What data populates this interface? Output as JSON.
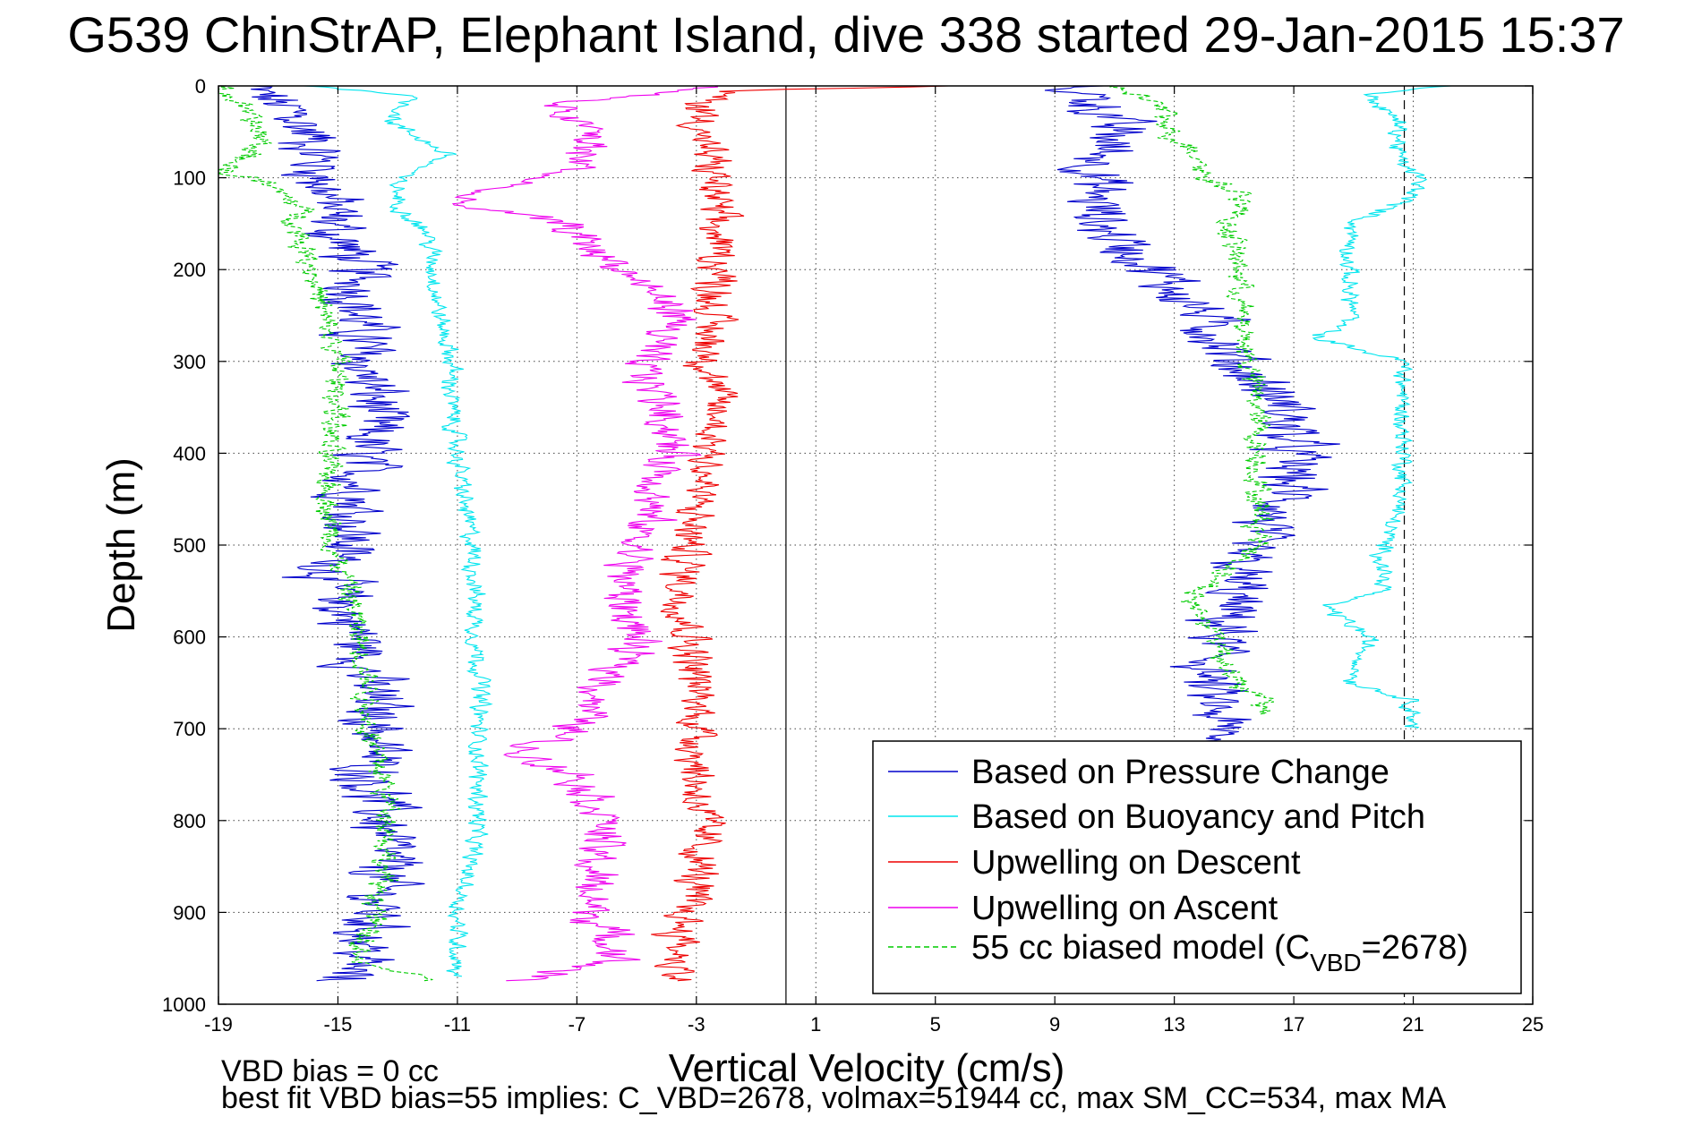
{
  "title": "G539 ChinStrAP, Elephant Island, dive 338 started 29-Jan-2015 15:37",
  "footer": {
    "line1": "VBD bias = 0 cc",
    "line2": "best fit VBD bias=55 implies: C_VBD=2678, volmax=51944 cc, max SM_CC=534, max MA"
  },
  "colors": {
    "pressure_change": "#0000cc",
    "buoyancy_pitch": "#00e5ee",
    "upwelling_descent": "#ee0000",
    "upwelling_ascent": "#ee00ee",
    "biased_model": "#00cc00"
  },
  "chart_data": {
    "type": "line",
    "title": "G539 ChinStrAP, Elephant Island, dive 338 started 29-Jan-2015 15:37",
    "xlabel": "Vertical Velocity (cm/s)",
    "ylabel": "Depth (m)",
    "xlim": [
      -19,
      25
    ],
    "ylim": [
      0,
      1000
    ],
    "y_reversed": true,
    "grid": true,
    "x_ticks": [
      "-19",
      "-15",
      "-11",
      "-7",
      "-3",
      "1",
      "5",
      "9",
      "13",
      "17",
      "21",
      "25"
    ],
    "y_ticks": [
      "0",
      "100",
      "200",
      "300",
      "400",
      "500",
      "600",
      "700",
      "800",
      "900",
      "1000"
    ],
    "reference_lines": {
      "zero_velocity_x": 0,
      "dashed_x": 20.7
    },
    "legend_location": "bottom-right",
    "legend": [
      {
        "label": "Based on Pressure Change",
        "style": "solid",
        "color_key": "pressure_change"
      },
      {
        "label": "Based on Buoyancy and Pitch",
        "style": "solid",
        "color_key": "buoyancy_pitch"
      },
      {
        "label": "Upwelling on Descent",
        "style": "solid",
        "color_key": "upwelling_descent"
      },
      {
        "label": "Upwelling on Ascent",
        "style": "solid",
        "color_key": "upwelling_ascent"
      },
      {
        "label_prefix": "55 cc biased model (C",
        "label_sub": "VBD",
        "label_suffix": "=2678)",
        "style": "dashed",
        "color_key": "biased_model"
      }
    ],
    "series": [
      {
        "name": "Based on Pressure Change",
        "color_key": "pressure_change",
        "noise": 0.9,
        "segments": [
          {
            "depth": [
              0,
              10,
              30,
              60,
              100,
              130,
              160,
              200,
              250,
              300,
              350,
              400,
              450,
              500,
              530,
              560,
              600,
              650,
              700,
              750,
              800,
              850,
              900,
              950,
              975
            ],
            "x": [
              -18,
              -17.5,
              -16.5,
              -15.8,
              -15.6,
              -15.2,
              -15.1,
              -14.2,
              -14.3,
              -14.2,
              -13.7,
              -14.2,
              -14.3,
              -14.6,
              -15.3,
              -15.0,
              -14.3,
              -14.0,
              -13.6,
              -13.9,
              -13.5,
              -13.4,
              -13.8,
              -14.2,
              -15
            ]
          },
          {
            "depth": [
              0,
              20,
              50,
              100,
              150,
              200,
              250,
              300,
              350,
              400,
              450,
              500,
              550,
              600,
              650,
              700,
              715
            ],
            "x": [
              9.5,
              10.5,
              11.0,
              10.3,
              10.5,
              12.3,
              14.0,
              15.0,
              16.7,
              17.0,
              16.8,
              15.2,
              15.0,
              14.5,
              14.0,
              14.5,
              14.5
            ]
          }
        ]
      },
      {
        "name": "Based on Buoyancy and Pitch",
        "color_key": "buoyancy_pitch",
        "noise": 0.25,
        "segments": [
          {
            "depth": [
              0,
              10,
              40,
              75,
              100,
              130,
              160,
              200,
              250,
              300,
              350,
              400,
              450,
              500,
              550,
              600,
              650,
              700,
              750,
              800,
              850,
              900,
              950,
              970
            ],
            "x": [
              -16,
              -12.5,
              -13.2,
              -11.3,
              -13.0,
              -13.0,
              -12.0,
              -11.8,
              -11.6,
              -11.2,
              -11.2,
              -11.0,
              -10.8,
              -10.5,
              -10.4,
              -10.4,
              -10.2,
              -10.3,
              -10.3,
              -10.3,
              -10.6,
              -11.0,
              -11.0,
              -11.0
            ]
          },
          {
            "depth": [
              0,
              10,
              40,
              80,
              100,
              120,
              150,
              200,
              250,
              275,
              300,
              350,
              400,
              450,
              500,
              550,
              565,
              600,
              650,
              670,
              700
            ],
            "x": [
              22.0,
              19.5,
              20.5,
              20.5,
              21.2,
              21.0,
              19.0,
              18.8,
              19.0,
              17.8,
              20.7,
              20.6,
              20.7,
              20.6,
              20.0,
              20.0,
              18.0,
              19.5,
              19.0,
              21.0,
              21.0
            ]
          }
        ]
      },
      {
        "name": "Upwelling on Descent",
        "color_key": "upwelling_descent",
        "noise": 0.55,
        "segments": [
          {
            "depth": [
              0,
              5,
              20,
              60,
              100,
              150,
              200,
              250,
              300,
              350,
              400,
              450,
              500,
              550,
              600,
              650,
              700,
              750,
              800,
              850,
              900,
              950,
              975
            ],
            "x": [
              5.5,
              -2.0,
              -2.8,
              -2.8,
              -2.4,
              -2.4,
              -2.2,
              -2.5,
              -2.6,
              -2.3,
              -2.5,
              -3.0,
              -3.3,
              -3.5,
              -3.2,
              -3.0,
              -2.9,
              -3.0,
              -2.8,
              -2.9,
              -3.4,
              -3.6,
              -3.6
            ]
          }
        ]
      },
      {
        "name": "Upwelling on Ascent",
        "color_key": "upwelling_ascent",
        "noise": 0.6,
        "segments": [
          {
            "depth": [
              0,
              20,
              50,
              90,
              110,
              125,
              150,
              200,
              250,
              300,
              350,
              400,
              450,
              500,
              550,
              600,
              650,
              700,
              725,
              750,
              800,
              850,
              900,
              950,
              975
            ],
            "x": [
              -2,
              -8.0,
              -6.5,
              -7.0,
              -9.5,
              -11.5,
              -7.5,
              -5.5,
              -3.5,
              -5.0,
              -4.0,
              -3.8,
              -4.5,
              -5.0,
              -5.5,
              -5.0,
              -6.0,
              -7.0,
              -9.0,
              -7.0,
              -6.0,
              -6.5,
              -6.5,
              -5.5,
              -9
            ]
          }
        ]
      },
      {
        "name": "55 cc biased model (C_VBD=2678)",
        "color_key": "biased_model",
        "dashed": true,
        "noise": 0.35,
        "segments": [
          {
            "depth": [
              0,
              20,
              60,
              95,
              100,
              130,
              160,
              200,
              250,
              300,
              350,
              400,
              450,
              500,
              550,
              600,
              650,
              700,
              750,
              800,
              850,
              900,
              950,
              975
            ],
            "x": [
              -19,
              -18.3,
              -17.5,
              -18.8,
              -17.8,
              -16.3,
              -16.3,
              -15.8,
              -15.5,
              -15.0,
              -15.0,
              -15.4,
              -15.3,
              -15.2,
              -14.6,
              -14.3,
              -14.0,
              -14.0,
              -13.5,
              -13.2,
              -13.5,
              -13.7,
              -14.5,
              -12
            ]
          },
          {
            "depth": [
              0,
              20,
              50,
              80,
              100,
              120,
              150,
              200,
              250,
              300,
              350,
              400,
              450,
              500,
              560,
              600,
              650,
              670,
              685
            ],
            "x": [
              11.0,
              12.5,
              12.8,
              14.0,
              14.0,
              15.5,
              14.8,
              15.2,
              15.2,
              15.5,
              15.8,
              15.8,
              15.8,
              15.9,
              13.5,
              14.5,
              15.0,
              16.0,
              16.0
            ]
          }
        ]
      }
    ]
  }
}
